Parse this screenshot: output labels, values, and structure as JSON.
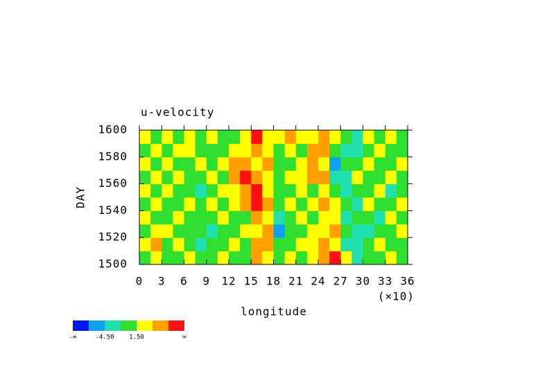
{
  "chart_data": {
    "type": "heatmap",
    "title": "u-velocity",
    "x_label": "longitude",
    "x_multiplier": "(×10)",
    "y_label": "DAY",
    "xlim": [
      0,
      36
    ],
    "xticks": [
      0,
      3,
      6,
      9,
      12,
      15,
      18,
      21,
      24,
      27,
      30,
      33,
      36
    ],
    "ylim": [
      1500,
      1600
    ],
    "yticks": [
      1500,
      1520,
      1540,
      1560,
      1580,
      1600
    ],
    "xbins": [
      0,
      1.5,
      3,
      4.5,
      6,
      7.5,
      9,
      10.5,
      12,
      13.5,
      15,
      16.5,
      18,
      19.5,
      21,
      22.5,
      24,
      25.5,
      27,
      28.5,
      30,
      31.5,
      33,
      34.5,
      36
    ],
    "ybins": [
      1500,
      1510,
      1520,
      1530,
      1540,
      1550,
      1560,
      1570,
      1580,
      1590,
      1600
    ],
    "z": [
      [
        0,
        3,
        0,
        0,
        3,
        0,
        0,
        3,
        0,
        0,
        6,
        3,
        0,
        3,
        0,
        3,
        6,
        9,
        3,
        -3,
        0,
        0,
        3,
        0
      ],
      [
        3,
        6,
        0,
        3,
        0,
        -3,
        0,
        0,
        3,
        0,
        6,
        6,
        0,
        0,
        3,
        3,
        6,
        3,
        -3,
        -3,
        0,
        3,
        0,
        0
      ],
      [
        0,
        3,
        3,
        0,
        0,
        0,
        -3,
        0,
        0,
        3,
        3,
        6,
        -6,
        0,
        0,
        3,
        3,
        6,
        0,
        -3,
        -3,
        0,
        0,
        3
      ],
      [
        3,
        0,
        0,
        3,
        0,
        0,
        0,
        3,
        0,
        0,
        6,
        3,
        -3,
        0,
        3,
        0,
        3,
        3,
        -3,
        0,
        0,
        -3,
        3,
        0
      ],
      [
        0,
        3,
        0,
        0,
        3,
        0,
        3,
        0,
        3,
        6,
        9,
        6,
        0,
        3,
        0,
        3,
        6,
        3,
        0,
        -3,
        3,
        0,
        0,
        3
      ],
      [
        3,
        0,
        3,
        0,
        0,
        -3,
        0,
        3,
        3,
        6,
        9,
        3,
        0,
        0,
        3,
        0,
        3,
        0,
        -3,
        0,
        0,
        3,
        -3,
        0
      ],
      [
        0,
        3,
        0,
        3,
        0,
        0,
        3,
        0,
        6,
        9,
        6,
        3,
        0,
        3,
        3,
        6,
        6,
        -3,
        -3,
        3,
        0,
        0,
        3,
        0
      ],
      [
        3,
        0,
        3,
        0,
        0,
        3,
        0,
        3,
        6,
        6,
        3,
        6,
        0,
        0,
        3,
        6,
        3,
        -6,
        0,
        0,
        3,
        0,
        0,
        3
      ],
      [
        0,
        3,
        0,
        3,
        3,
        0,
        0,
        0,
        3,
        3,
        6,
        3,
        0,
        3,
        0,
        6,
        6,
        0,
        -3,
        -3,
        0,
        3,
        0,
        0
      ],
      [
        3,
        0,
        3,
        0,
        3,
        0,
        3,
        0,
        0,
        3,
        9,
        3,
        3,
        6,
        3,
        3,
        6,
        3,
        0,
        -3,
        3,
        0,
        3,
        0
      ]
    ],
    "colorbar": {
      "colors": [
        "#0018f0",
        "#10a0f0",
        "#20e0b0",
        "#30e030",
        "#ffff00",
        "#ffa000",
        "#ff1010"
      ],
      "ticks": [
        {
          "value": -4.5,
          "label": "-4.50"
        },
        {
          "value": 1.5,
          "label": "1.50"
        }
      ],
      "low_label": "-∞",
      "high_label": "∞"
    }
  }
}
